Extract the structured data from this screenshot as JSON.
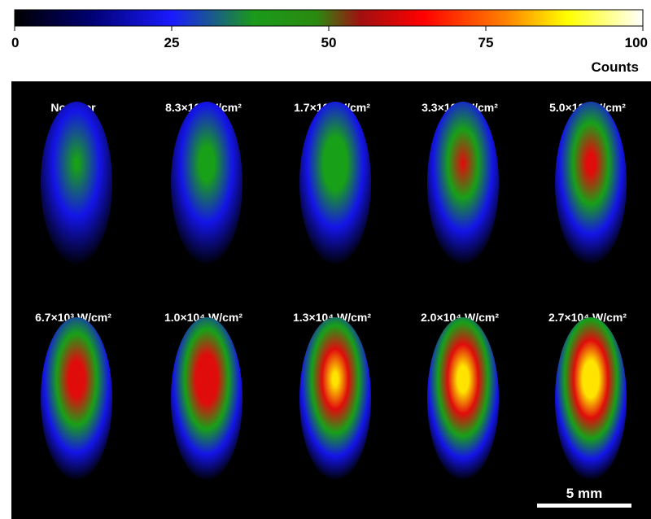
{
  "colorbar": {
    "ticks": [
      0,
      25,
      50,
      75,
      100
    ],
    "label": "Counts"
  },
  "panels": [
    {
      "label": "No laser"
    },
    {
      "label": "8.3×10² W/cm²"
    },
    {
      "label": "1.7×10³ W/cm²"
    },
    {
      "label": "3.3×10³ W/cm²"
    },
    {
      "label": "5.0×10³ W/cm²"
    },
    {
      "label": "6.7×10³ W/cm²"
    },
    {
      "label": "1.0×10⁴ W/cm²"
    },
    {
      "label": "1.3×10⁴ W/cm²"
    },
    {
      "label": "2.0×10⁴ W/cm²"
    },
    {
      "label": "2.7×10⁴ W/cm²"
    }
  ],
  "scale_bar": "5 mm"
}
